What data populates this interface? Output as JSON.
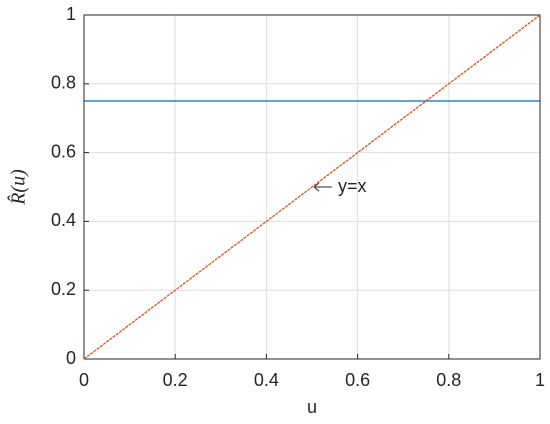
{
  "chart_data": {
    "type": "line",
    "xlabel": "u",
    "ylabel": "R̂(u)",
    "x": [
      0,
      1
    ],
    "series": [
      {
        "color": "#0072bd",
        "values": [
          0.75,
          0.75
        ]
      },
      {
        "color": "#d95319",
        "values": [
          0,
          1
        ],
        "dashed": true
      }
    ],
    "xlim": [
      0,
      1
    ],
    "ylim": [
      0,
      1
    ],
    "xticks": [
      0,
      0.2,
      0.4,
      0.6,
      0.8,
      1
    ],
    "yticks": [
      0,
      0.2,
      0.4,
      0.6,
      0.8,
      1
    ],
    "grid": true,
    "annotations": [
      {
        "text": "y=x",
        "x": 0.5,
        "y": 0.5
      }
    ]
  }
}
